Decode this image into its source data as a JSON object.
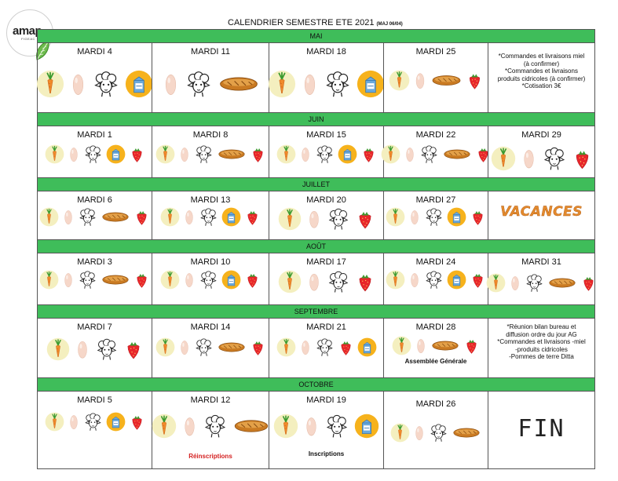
{
  "logo": {
    "text": "amap",
    "sub": "FIGEAC"
  },
  "title": {
    "main": "CALENDRIER SEMESTRE ETE 2021",
    "maj": "(MAJ 06/04)"
  },
  "products": {
    "carrot": "carrot-icon",
    "egg": "egg-icon",
    "sheep": "sheep-cheese-icon",
    "milk": "milk-carton-icon",
    "bread": "bread-icon",
    "strawberry": "strawberry-icon"
  },
  "colors": {
    "month_bar": "#3fbd5a",
    "vacances": "#e38a2e",
    "note_red": "#d42020"
  },
  "months": [
    {
      "name": "MAI",
      "height": 88,
      "iconTop": 34,
      "iconSize": 36,
      "days": [
        {
          "label": "MARDI 4",
          "icons": [
            "carrot",
            "egg",
            "sheep",
            "milk"
          ]
        },
        {
          "label": "MARDI 11",
          "icons": [
            "egg",
            "sheep",
            "bread"
          ]
        },
        {
          "label": "MARDI 18",
          "icons": [
            "carrot",
            "egg",
            "sheep",
            "milk"
          ]
        },
        {
          "label": "MARDI 25",
          "icons": [
            "carrot",
            "egg",
            "bread",
            "strawberry"
          ],
          "iconSize": 27,
          "iconTop": 34
        },
        {
          "info": [
            "*Commandes et livraisons  miel",
            "(à confirmer)",
            "*Commandes et livraisons",
            "produits cidricoles (à confirmer)",
            "*Cotisation 3€"
          ],
          "infoTop": 12
        }
      ]
    },
    {
      "name": "JUIN",
      "height": 65,
      "iconTop": 23,
      "iconSize": 25,
      "days": [
        {
          "label": "MARDI 1",
          "icons": [
            "carrot",
            "egg",
            "sheep",
            "milk",
            "strawberry"
          ]
        },
        {
          "label": "MARDI 8",
          "icons": [
            "carrot",
            "egg",
            "sheep",
            "bread",
            "strawberry"
          ]
        },
        {
          "label": "MARDI 15",
          "icons": [
            "carrot",
            "egg",
            "sheep",
            "milk",
            "strawberry"
          ]
        },
        {
          "label": "MARDI 22",
          "icons": [
            "carrot",
            "egg",
            "sheep",
            "bread",
            "strawberry"
          ]
        },
        {
          "label": "MARDI 29",
          "icons": [
            "carrot",
            "egg",
            "sheep",
            "strawberry"
          ],
          "iconSize": 32,
          "iconTop": 25
        }
      ]
    },
    {
      "name": "JUILLET",
      "height": 61,
      "iconTop": 20,
      "iconSize": 25,
      "days": [
        {
          "label": "MARDI 6",
          "icons": [
            "carrot",
            "egg",
            "sheep",
            "bread",
            "strawberry"
          ]
        },
        {
          "label": "MARDI 13",
          "icons": [
            "carrot",
            "egg",
            "sheep",
            "milk",
            "strawberry"
          ]
        },
        {
          "label": "MARDI 20",
          "icons": [
            "carrot",
            "egg",
            "sheep",
            "strawberry"
          ],
          "iconSize": 30
        },
        {
          "label": "MARDI 27",
          "icons": [
            "carrot",
            "egg",
            "sheep",
            "milk",
            "strawberry"
          ]
        },
        {
          "vacances": "VACANCES"
        }
      ]
    },
    {
      "name": "AOÛT",
      "height": 65,
      "iconTop": 21,
      "iconSize": 25,
      "days": [
        {
          "label": "MARDI 3",
          "icons": [
            "carrot",
            "egg",
            "sheep",
            "bread",
            "strawberry"
          ]
        },
        {
          "label": "MARDI 10",
          "icons": [
            "carrot",
            "egg",
            "sheep",
            "milk",
            "strawberry"
          ]
        },
        {
          "label": "MARDI 17",
          "icons": [
            "carrot",
            "egg",
            "sheep",
            "strawberry"
          ],
          "iconSize": 30
        },
        {
          "label": "MARDI 24",
          "icons": [
            "carrot",
            "egg",
            "sheep",
            "milk",
            "strawberry"
          ]
        },
        {
          "label": "MARDI 31",
          "icons": [
            "carrot",
            "egg",
            "sheep",
            "bread",
            "strawberry"
          ],
          "iconTop": 25
        }
      ]
    },
    {
      "name": "SEPTEMBRE",
      "height": 75,
      "iconTop": 24,
      "iconSize": 25,
      "days": [
        {
          "label": "MARDI 7",
          "icons": [
            "carrot",
            "egg",
            "sheep",
            "strawberry"
          ],
          "iconSize": 30
        },
        {
          "label": "MARDI 14",
          "icons": [
            "carrot",
            "egg",
            "sheep",
            "bread",
            "strawberry"
          ]
        },
        {
          "label": "MARDI 21",
          "icons": [
            "carrot",
            "egg",
            "sheep",
            "strawberry",
            "milk"
          ]
        },
        {
          "label": "MARDI 28",
          "icons": [
            "carrot",
            "egg",
            "bread",
            "strawberry"
          ],
          "iconTop": 22,
          "note": "Assemblée Générale",
          "noteTop": 50
        },
        {
          "info": [
            "*Réunion bilan bureau et",
            "diffusion ordre du jour AG",
            "*Commandes et livraisons -miel",
            "-produits cidricoles",
            "-Pommes de terre Ditta"
          ],
          "infoTop": 6
        }
      ]
    },
    {
      "name": "OCTOBRE",
      "height": 98,
      "iconTop": 26,
      "iconSize": 25,
      "days": [
        {
          "label": "MARDI 5",
          "icons": [
            "carrot",
            "egg",
            "sheep",
            "milk",
            "strawberry"
          ]
        },
        {
          "label": "MARDI 12",
          "icons": [
            "carrot",
            "egg",
            "sheep",
            "bread"
          ],
          "iconSize": 32,
          "iconTop": 28,
          "note": "Réinscriptions",
          "noteTop": 78,
          "noteRed": true
        },
        {
          "label": "MARDI 19",
          "icons": [
            "carrot",
            "egg",
            "sheep",
            "milk"
          ],
          "iconSize": 32,
          "iconTop": 28,
          "note": "Inscriptions",
          "noteTop": 75
        },
        {
          "label": "MARDI 26",
          "icons": [
            "carrot",
            "egg",
            "sheep",
            "bread"
          ],
          "iconTop": 40,
          "labelTop": 10
        },
        {
          "fin": "FIN"
        }
      ]
    }
  ]
}
